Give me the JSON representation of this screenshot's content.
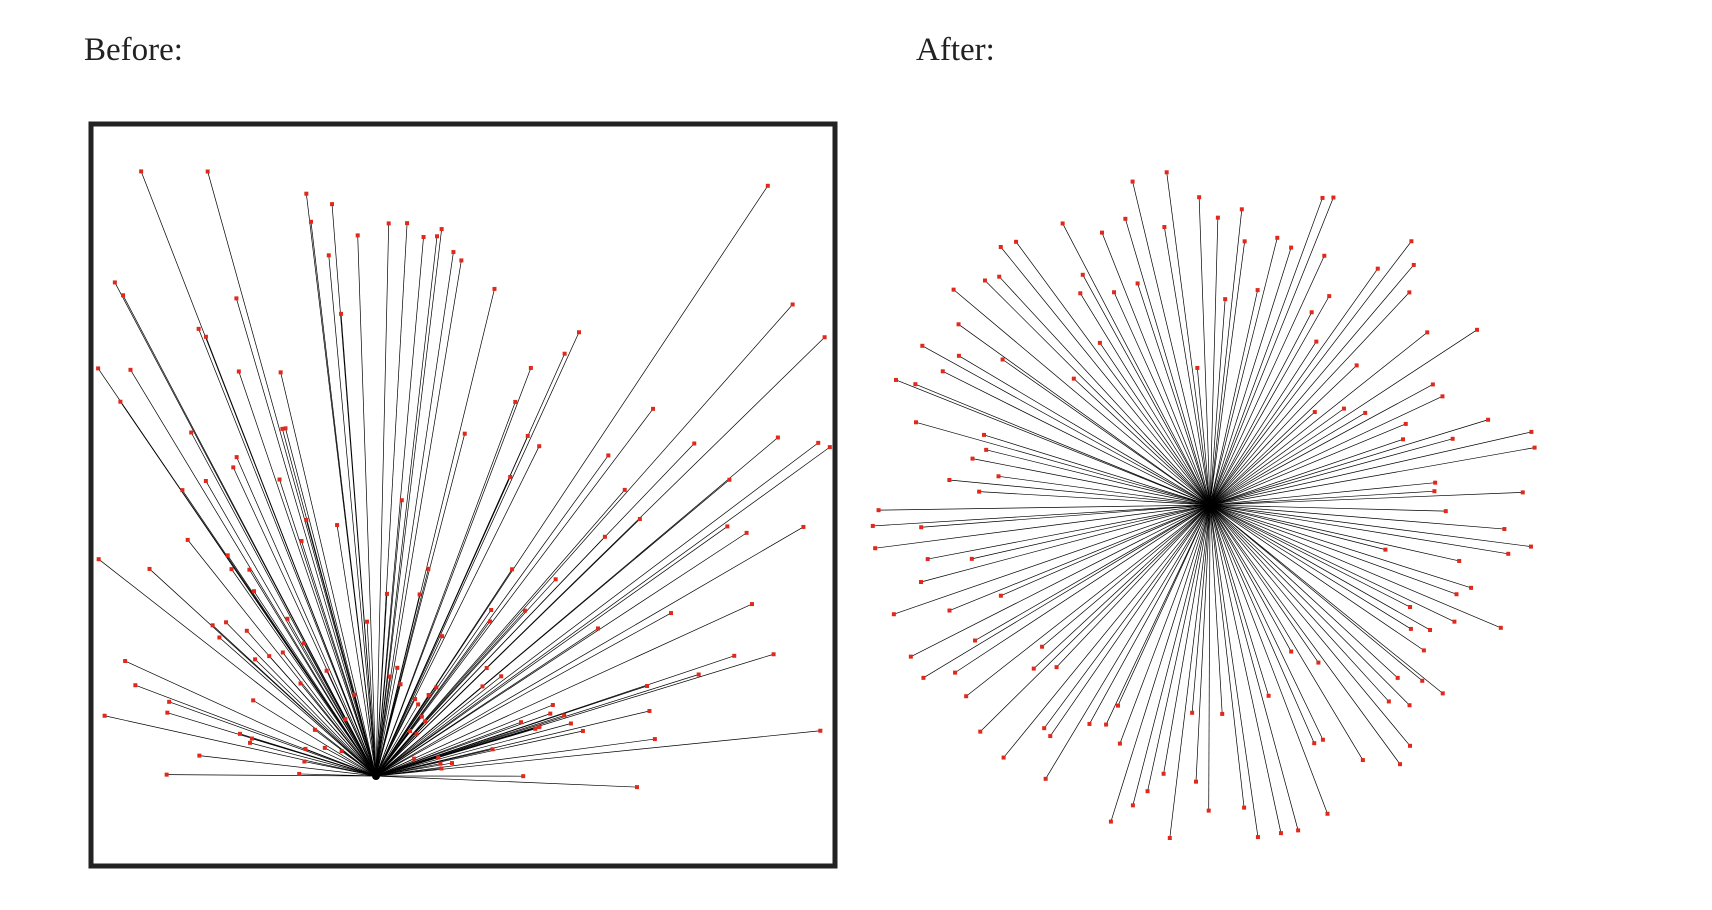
{
  "before": {
    "label": "Before:"
  },
  "after": {
    "label": "After:"
  }
}
